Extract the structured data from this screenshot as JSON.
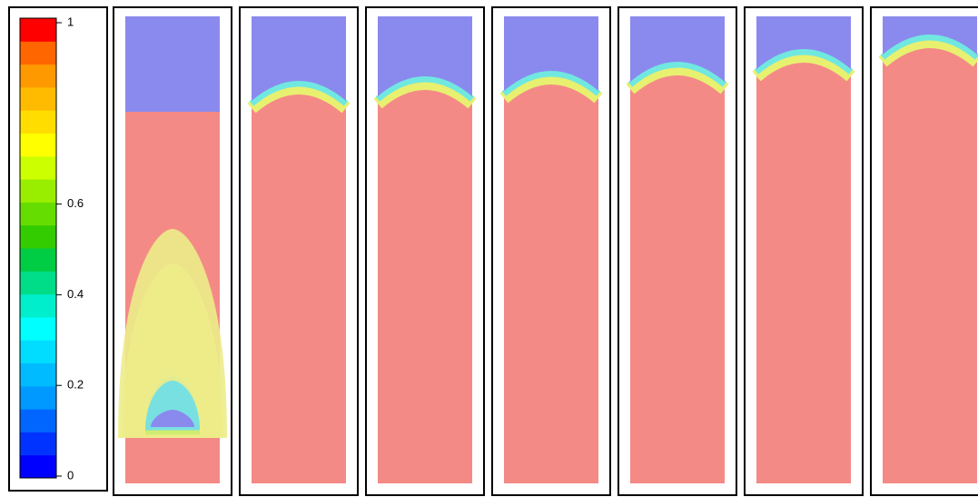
{
  "colorbar": {
    "lim": [
      0,
      1
    ],
    "ticks": [
      0,
      0.2,
      0.4,
      0.6,
      1
    ],
    "colors": [
      "#0000ff",
      "#0033ff",
      "#0066ff",
      "#0099ff",
      "#00bbff",
      "#00ddff",
      "#00ffff",
      "#00eecc",
      "#00dd88",
      "#00cc44",
      "#33cc00",
      "#66dd00",
      "#99ee00",
      "#ccff00",
      "#ffff00",
      "#ffdd00",
      "#ffbb00",
      "#ff9900",
      "#ff6600",
      "#ff0000"
    ]
  }
}
